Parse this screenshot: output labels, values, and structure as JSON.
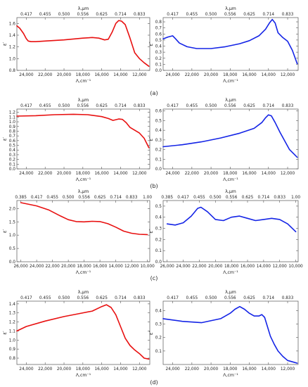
{
  "figure": {
    "panel_labels": [
      "(a)",
      "(b)",
      "(c)",
      "(d)"
    ]
  },
  "colors": {
    "eps_real": "#e81010",
    "eps_imag": "#1424e6",
    "axis": "#555555"
  },
  "chart_data": [
    {
      "type": "line",
      "panel": "(a)",
      "quantity": "real",
      "xlabel": "Λ,cm⁻¹",
      "ylabel": "ε′",
      "top_label": "λ,μm",
      "xlim": [
        25000,
        10900
      ],
      "ylim": [
        0.8,
        1.7
      ],
      "x_ticks": [
        "24,000",
        "22,000",
        "20,000",
        "18,000",
        "16,000",
        "14,000",
        "12,000"
      ],
      "x_tick_values": [
        24000,
        22000,
        20000,
        18000,
        16000,
        14000,
        12000
      ],
      "y_ticks": [
        "0.8",
        "1.0",
        "1.2",
        "1.4",
        "1.6"
      ],
      "y_tick_values": [
        0.8,
        1.0,
        1.2,
        1.4,
        1.6
      ],
      "top_ticks": [
        "0.417",
        "0.455",
        "0.500",
        "0.556",
        "0.625",
        "0.714",
        "0.833"
      ],
      "top_tick_positions": [
        24000,
        22000,
        20000,
        18000,
        16000,
        14000,
        12000
      ],
      "series": [
        {
          "x": [
            25000,
            24700,
            24300,
            24000,
            23800,
            23500,
            23000,
            22000,
            20000,
            18000,
            17000,
            16300,
            15700,
            15300,
            14900,
            14500,
            14200,
            13900,
            13500,
            13000,
            12500,
            12000,
            11500,
            11000
          ],
          "y": [
            1.56,
            1.52,
            1.43,
            1.34,
            1.3,
            1.29,
            1.29,
            1.3,
            1.32,
            1.35,
            1.36,
            1.35,
            1.32,
            1.33,
            1.45,
            1.6,
            1.65,
            1.64,
            1.58,
            1.35,
            1.1,
            1.0,
            0.93,
            0.87
          ]
        }
      ]
    },
    {
      "type": "line",
      "panel": "(a)",
      "quantity": "imag",
      "xlabel": "Λ,cm⁻¹",
      "ylabel": "ε″",
      "top_label": "λ,μm",
      "xlim": [
        25000,
        10900
      ],
      "ylim": [
        0.0,
        0.87
      ],
      "x_ticks": [
        "24,000",
        "22,000",
        "20,000",
        "18,000",
        "16,000",
        "14,000",
        "12,000"
      ],
      "x_tick_values": [
        24000,
        22000,
        20000,
        18000,
        16000,
        14000,
        12000
      ],
      "y_ticks": [
        "0.0",
        "0.1",
        "0.2",
        "0.3",
        "0.4",
        "0.5",
        "0.6",
        "0.7",
        "0.8"
      ],
      "y_tick_values": [
        0.0,
        0.1,
        0.2,
        0.3,
        0.4,
        0.5,
        0.6,
        0.7,
        0.8
      ],
      "top_ticks": [
        "0.417",
        "0.455",
        "0.500",
        "0.556",
        "0.625",
        "0.714",
        "0.833"
      ],
      "top_tick_positions": [
        24000,
        22000,
        20000,
        18000,
        16000,
        14000,
        12000
      ],
      "series": [
        {
          "x": [
            25000,
            24500,
            24000,
            23700,
            23300,
            22500,
            21500,
            20000,
            18500,
            17000,
            16000,
            15000,
            14300,
            13900,
            13600,
            13300,
            13000,
            12500,
            12000,
            11500,
            11000
          ],
          "y": [
            0.52,
            0.55,
            0.57,
            0.52,
            0.45,
            0.39,
            0.36,
            0.36,
            0.39,
            0.44,
            0.49,
            0.57,
            0.68,
            0.78,
            0.84,
            0.78,
            0.62,
            0.54,
            0.48,
            0.33,
            0.11
          ]
        }
      ]
    },
    {
      "type": "line",
      "panel": "(b)",
      "quantity": "real",
      "xlabel": "Λ,cm⁻¹",
      "ylabel": "ε′",
      "top_label": "λ,μm",
      "xlim": [
        25000,
        10900
      ],
      "ylim": [
        0.0,
        1.27
      ],
      "x_ticks": [
        "24,000",
        "22,000",
        "20,000",
        "18,000",
        "16,000",
        "14,000",
        "12,000"
      ],
      "x_tick_values": [
        24000,
        22000,
        20000,
        18000,
        16000,
        14000,
        12000
      ],
      "y_ticks": [
        "0.0",
        "0.1",
        "0.2",
        "0.3",
        "0.4",
        "0.5",
        "0.6",
        "0.7",
        "0.8",
        "0.9",
        "1.0",
        "1.1",
        "1.2"
      ],
      "y_tick_values": [
        0.0,
        0.1,
        0.2,
        0.3,
        0.4,
        0.5,
        0.6,
        0.7,
        0.8,
        0.9,
        1.0,
        1.1,
        1.2
      ],
      "top_ticks": [
        "0.417",
        "0.455",
        "0.500",
        "0.556",
        "0.625",
        "0.714",
        "0.833"
      ],
      "top_tick_positions": [
        24000,
        22000,
        20000,
        18000,
        16000,
        14000,
        12000
      ],
      "series": [
        {
          "x": [
            25000,
            23000,
            21000,
            19000,
            17500,
            16000,
            15300,
            14800,
            14200,
            13800,
            13400,
            13000,
            12500,
            12000,
            11500,
            11000
          ],
          "y": [
            1.12,
            1.13,
            1.15,
            1.16,
            1.15,
            1.11,
            1.07,
            1.03,
            1.06,
            1.05,
            0.98,
            0.88,
            0.82,
            0.76,
            0.65,
            0.45
          ]
        }
      ]
    },
    {
      "type": "line",
      "panel": "(b)",
      "quantity": "imag",
      "xlabel": "Λ,cm⁻¹",
      "ylabel": "ε″",
      "top_label": "λ,μm",
      "xlim": [
        25000,
        10900
      ],
      "ylim": [
        0.0,
        0.62
      ],
      "x_ticks": [
        "24,000",
        "22,000",
        "20,000",
        "18,000",
        "16,000",
        "14,000",
        "12,000"
      ],
      "x_tick_values": [
        24000,
        22000,
        20000,
        18000,
        16000,
        14000,
        12000
      ],
      "y_ticks": [
        "0.0",
        "0.1",
        "0.2",
        "0.3",
        "0.4",
        "0.5",
        "0.6"
      ],
      "y_tick_values": [
        0.0,
        0.1,
        0.2,
        0.3,
        0.4,
        0.5,
        0.6
      ],
      "top_ticks": [
        "0.417",
        "0.455",
        "0.500",
        "0.556",
        "0.625",
        "0.714",
        "0.833"
      ],
      "top_tick_positions": [
        24000,
        22000,
        20000,
        18000,
        16000,
        14000,
        12000
      ],
      "series": [
        {
          "x": [
            25000,
            23000,
            21000,
            19000,
            17000,
            15500,
            14700,
            14300,
            14000,
            13700,
            13300,
            12800,
            12300,
            11800,
            11300,
            11000
          ],
          "y": [
            0.23,
            0.25,
            0.28,
            0.32,
            0.37,
            0.42,
            0.48,
            0.53,
            0.56,
            0.55,
            0.48,
            0.38,
            0.29,
            0.2,
            0.15,
            0.12
          ]
        }
      ]
    },
    {
      "type": "line",
      "panel": "(c)",
      "quantity": "real",
      "xlabel": "Λ,cm⁻¹",
      "ylabel": "ε′",
      "top_label": "λ,μm",
      "xlim": [
        26500,
        9700
      ],
      "ylim": [
        0.0,
        2.3
      ],
      "x_ticks": [
        "26,000",
        "24,000",
        "22,000",
        "20,000",
        "18,000",
        "16,000",
        "14,000",
        "12,000",
        "10,000"
      ],
      "x_tick_values": [
        26000,
        24000,
        22000,
        20000,
        18000,
        16000,
        14000,
        12000,
        10000
      ],
      "y_ticks": [
        "0.0",
        "0.5",
        "1.0",
        "1.5",
        "2.0"
      ],
      "y_tick_values": [
        0.0,
        0.5,
        1.0,
        1.5,
        2.0
      ],
      "top_ticks": [
        "0.385",
        "0.417",
        "0.455",
        "0.500",
        "0.556",
        "0.625",
        "0.714",
        "0.833",
        "1.00"
      ],
      "top_tick_positions": [
        26000,
        24000,
        22000,
        20000,
        18000,
        16000,
        14000,
        12000,
        10000
      ],
      "series": [
        {
          "x": [
            26000,
            24000,
            22500,
            21000,
            20000,
            19000,
            18000,
            17000,
            16000,
            15000,
            14000,
            13000,
            12000,
            11000,
            10000
          ],
          "y": [
            2.22,
            2.1,
            1.95,
            1.72,
            1.58,
            1.51,
            1.5,
            1.52,
            1.51,
            1.43,
            1.3,
            1.15,
            1.07,
            1.03,
            1.02
          ]
        }
      ]
    },
    {
      "type": "line",
      "panel": "(c)",
      "quantity": "imag",
      "xlabel": "Λ,cm⁻¹",
      "ylabel": "ε″",
      "top_label": "λ,μm",
      "xlim": [
        26500,
        9700
      ],
      "ylim": [
        0.0,
        0.55
      ],
      "x_ticks": [
        "26,000",
        "24,000",
        "22,000",
        "20,000",
        "18,000",
        "16,000",
        "14,000",
        "12,000",
        "10,000"
      ],
      "x_tick_values": [
        26000,
        24000,
        22000,
        20000,
        18000,
        16000,
        14000,
        12000,
        10000
      ],
      "y_ticks": [
        "0.0",
        "0.1",
        "0.2",
        "0.3",
        "0.4",
        "0.5"
      ],
      "y_tick_values": [
        0.0,
        0.1,
        0.2,
        0.3,
        0.4,
        0.5
      ],
      "top_ticks": [
        "0.385",
        "0.417",
        "0.455",
        "0.500",
        "0.556",
        "0.625",
        "0.714",
        "0.833",
        "1.00"
      ],
      "top_tick_positions": [
        26000,
        24000,
        22000,
        20000,
        18000,
        16000,
        14000,
        12000,
        10000
      ],
      "series": [
        {
          "x": [
            26000,
            25000,
            24000,
            23000,
            22200,
            21800,
            21000,
            20000,
            19000,
            18000,
            17000,
            16000,
            15000,
            14000,
            13000,
            12000,
            11000,
            10000
          ],
          "y": [
            0.34,
            0.33,
            0.35,
            0.41,
            0.48,
            0.49,
            0.45,
            0.38,
            0.37,
            0.4,
            0.41,
            0.39,
            0.37,
            0.38,
            0.39,
            0.38,
            0.34,
            0.27
          ]
        }
      ]
    },
    {
      "type": "line",
      "panel": "(d)",
      "quantity": "real",
      "xlabel": "Λ,cm⁻¹",
      "ylabel": "ε′",
      "top_label": "λ,μm",
      "xlim": [
        25000,
        10900
      ],
      "ylim": [
        0.73,
        1.43
      ],
      "x_ticks": [
        "24,000",
        "22,000",
        "20,000",
        "18,000",
        "16,000",
        "14,000",
        "12,000"
      ],
      "x_tick_values": [
        24000,
        22000,
        20000,
        18000,
        16000,
        14000,
        12000
      ],
      "y_ticks": [
        "0.8",
        "0.9",
        "1.0",
        "1.1",
        "1.2",
        "1.3",
        "1.4"
      ],
      "y_tick_values": [
        0.8,
        0.9,
        1.0,
        1.1,
        1.2,
        1.3,
        1.4
      ],
      "top_ticks": [
        "0.417",
        "0.455",
        "0.500",
        "0.556",
        "0.625",
        "0.714",
        "0.833"
      ],
      "top_tick_positions": [
        24000,
        22000,
        20000,
        18000,
        16000,
        14000,
        12000
      ],
      "series": [
        {
          "x": [
            25000,
            24000,
            22000,
            20000,
            18500,
            17000,
            16000,
            15500,
            15000,
            14500,
            14000,
            13500,
            13000,
            12500,
            12000,
            11500,
            11000
          ],
          "y": [
            1.1,
            1.15,
            1.21,
            1.26,
            1.29,
            1.32,
            1.37,
            1.39,
            1.36,
            1.28,
            1.15,
            1.02,
            0.94,
            0.89,
            0.85,
            0.8,
            0.79
          ]
        }
      ]
    },
    {
      "type": "line",
      "panel": "(d)",
      "quantity": "imag",
      "xlabel": "Λ,cm⁻¹",
      "ylabel": "ε″",
      "top_label": "λ,μm",
      "xlim": [
        25000,
        10900
      ],
      "ylim": [
        0.0,
        0.47
      ],
      "x_ticks": [
        "24,000",
        "22,000",
        "20,000",
        "18,000",
        "16,000",
        "14,000",
        "12,000"
      ],
      "x_tick_values": [
        24000,
        22000,
        20000,
        18000,
        16000,
        14000,
        12000
      ],
      "y_ticks": [
        "0.1",
        "0.2",
        "0.3",
        "0.4"
      ],
      "y_tick_values": [
        0.1,
        0.2,
        0.3,
        0.4
      ],
      "top_ticks": [
        "0.417",
        "0.455",
        "0.500",
        "0.556",
        "0.625",
        "0.714",
        "0.833"
      ],
      "top_tick_positions": [
        24000,
        22000,
        20000,
        18000,
        16000,
        14000,
        12000
      ],
      "series": [
        {
          "x": [
            25000,
            23000,
            21000,
            19000,
            18000,
            17500,
            17000,
            16500,
            16000,
            15500,
            15000,
            14700,
            14400,
            14100,
            13800,
            13400,
            13000,
            12500,
            12000,
            11500,
            11000
          ],
          "y": [
            0.34,
            0.32,
            0.31,
            0.34,
            0.38,
            0.41,
            0.43,
            0.41,
            0.38,
            0.36,
            0.36,
            0.37,
            0.35,
            0.28,
            0.21,
            0.15,
            0.1,
            0.06,
            0.03,
            0.02,
            0.01
          ]
        }
      ]
    }
  ]
}
